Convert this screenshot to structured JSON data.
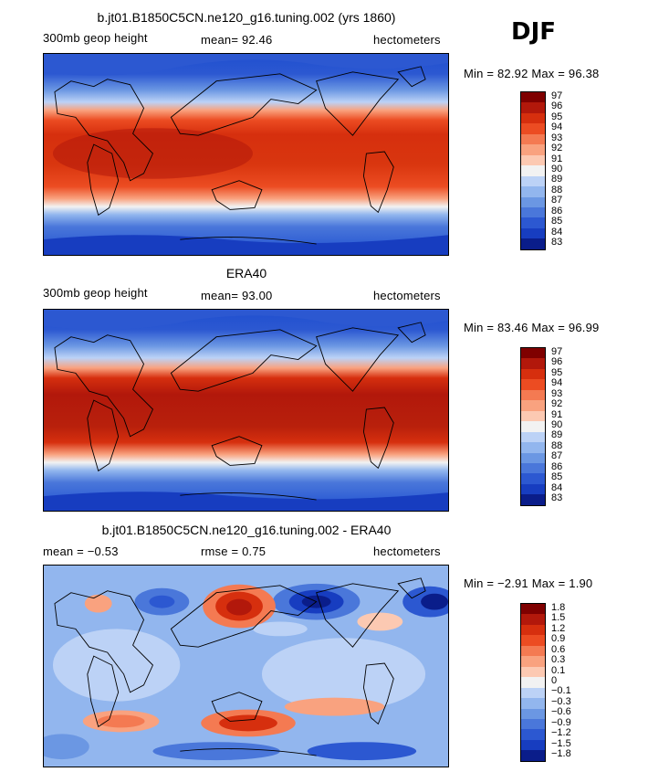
{
  "season": "DJF",
  "panels": [
    {
      "title": "b.jt01.B1850C5CN.ne120_g16.tuning.002 (yrs 1860)",
      "left_label": "300mb geop height",
      "stat1_label": "mean=",
      "stat1_value": "92.46",
      "stat2_label": "",
      "stat2_value": "",
      "units": "hectometers",
      "min_label": "Min =",
      "min_value": "82.92",
      "max_label": "Max =",
      "max_value": "96.38"
    },
    {
      "title": "ERA40",
      "left_label": "300mb geop height",
      "stat1_label": "mean=",
      "stat1_value": "93.00",
      "stat2_label": "",
      "stat2_value": "",
      "units": "hectometers",
      "min_label": "Min =",
      "min_value": "83.46",
      "max_label": "Max =",
      "max_value": "96.99"
    },
    {
      "title": "b.jt01.B1850C5CN.ne120_g16.tuning.002 - ERA40",
      "left_label": "",
      "stat1_label": "mean =",
      "stat1_value": "−0.53",
      "stat2_label": "rmse =",
      "stat2_value": "0.75",
      "units": "hectometers",
      "min_label": "Min =",
      "min_value": "−2.91",
      "max_label": "Max =",
      "max_value": "1.90"
    }
  ],
  "chart_data": [
    {
      "type": "heatmap",
      "title": "b.jt01.B1850C5CN.ne120_g16.tuning.002 (yrs 1860)",
      "field": "300mb geop height",
      "units": "hectometers",
      "mean": 92.46,
      "min": 82.92,
      "max": 96.38,
      "colorbar_levels": [
        "97",
        "96",
        "95",
        "94",
        "93",
        "92",
        "91",
        "90",
        "89",
        "88",
        "87",
        "86",
        "85",
        "84",
        "83"
      ],
      "colors": [
        "#7f0000",
        "#b2180b",
        "#d62f0e",
        "#ec4c22",
        "#f47a52",
        "#f9a27f",
        "#fcc9b2",
        "#f2f2f2",
        "#bcd2f6",
        "#92b6ee",
        "#6b97e3",
        "#4a77da",
        "#2c58d1",
        "#173dc0",
        "#0a1d8a"
      ]
    },
    {
      "type": "heatmap",
      "title": "ERA40",
      "field": "300mb geop height",
      "units": "hectometers",
      "mean": 93.0,
      "min": 83.46,
      "max": 96.99,
      "colorbar_levels": [
        "97",
        "96",
        "95",
        "94",
        "93",
        "92",
        "91",
        "90",
        "89",
        "88",
        "87",
        "86",
        "85",
        "84",
        "83"
      ],
      "colors": [
        "#7f0000",
        "#b2180b",
        "#d62f0e",
        "#ec4c22",
        "#f47a52",
        "#f9a27f",
        "#fcc9b2",
        "#f2f2f2",
        "#bcd2f6",
        "#92b6ee",
        "#6b97e3",
        "#4a77da",
        "#2c58d1",
        "#173dc0",
        "#0a1d8a"
      ]
    },
    {
      "type": "heatmap",
      "title": "b.jt01.B1850C5CN.ne120_g16.tuning.002 - ERA40",
      "units": "hectometers",
      "mean": -0.53,
      "rmse": 0.75,
      "min": -2.91,
      "max": 1.9,
      "colorbar_levels": [
        "1.8",
        "1.5",
        "1.2",
        "0.9",
        "0.6",
        "0.3",
        "0.1",
        "0",
        "−0.1",
        "−0.3",
        "−0.6",
        "−0.9",
        "−1.2",
        "−1.5",
        "−1.8"
      ],
      "colors": [
        "#7f0000",
        "#b2180b",
        "#d62f0e",
        "#ec4c22",
        "#f47a52",
        "#f9a27f",
        "#fcc9b2",
        "#f2f2f2",
        "#bcd2f6",
        "#92b6ee",
        "#6b97e3",
        "#4a77da",
        "#2c58d1",
        "#173dc0",
        "#0a1d8a"
      ]
    }
  ]
}
